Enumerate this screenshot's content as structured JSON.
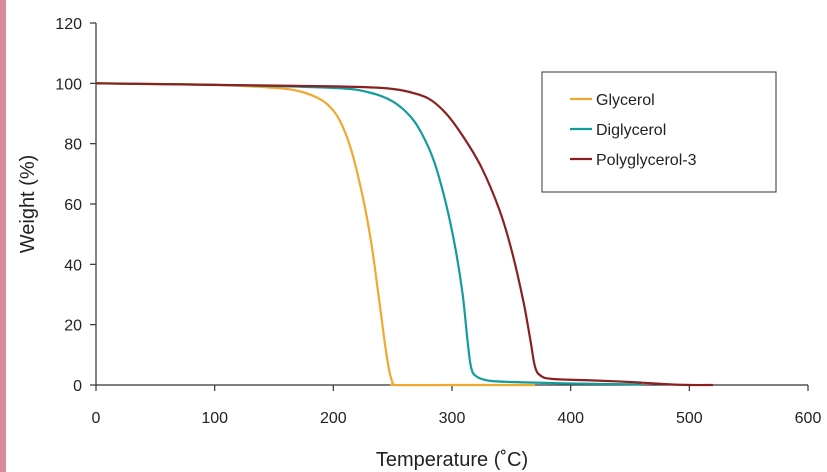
{
  "chart_data": {
    "type": "line",
    "title": "",
    "xlabel": "Temperature (˚C)",
    "ylabel": "Weight (%)",
    "xlim": [
      0,
      600
    ],
    "ylim": [
      0,
      120
    ],
    "x_ticks": [
      0,
      100,
      200,
      300,
      400,
      500,
      600
    ],
    "y_ticks": [
      0,
      20,
      40,
      60,
      80,
      100,
      120
    ],
    "grid": false,
    "legend_position": "top-right",
    "series": [
      {
        "name": "Glycerol",
        "color": "#f0a830",
        "points": [
          [
            0,
            100
          ],
          [
            50,
            99.8
          ],
          [
            100,
            99.5
          ],
          [
            150,
            98.5
          ],
          [
            170,
            97.5
          ],
          [
            185,
            95.5
          ],
          [
            195,
            93
          ],
          [
            205,
            88
          ],
          [
            215,
            78
          ],
          [
            225,
            62
          ],
          [
            232,
            47
          ],
          [
            238,
            30
          ],
          [
            243,
            15
          ],
          [
            247,
            5
          ],
          [
            250,
            0.8
          ],
          [
            253,
            0
          ],
          [
            300,
            0
          ],
          [
            370,
            0
          ]
        ]
      },
      {
        "name": "Diglycerol",
        "color": "#139c9c",
        "points": [
          [
            0,
            100
          ],
          [
            100,
            99.5
          ],
          [
            200,
            98.5
          ],
          [
            230,
            97
          ],
          [
            250,
            94
          ],
          [
            265,
            89
          ],
          [
            275,
            83
          ],
          [
            285,
            74
          ],
          [
            295,
            60
          ],
          [
            303,
            45
          ],
          [
            309,
            30
          ],
          [
            313,
            15
          ],
          [
            316,
            6
          ],
          [
            320,
            3
          ],
          [
            330,
            1.5
          ],
          [
            350,
            1
          ],
          [
            400,
            0.5
          ],
          [
            460,
            0.2
          ]
        ]
      },
      {
        "name": "Polyglycerol-3",
        "color": "#8b2020",
        "points": [
          [
            0,
            100
          ],
          [
            100,
            99.5
          ],
          [
            200,
            99
          ],
          [
            240,
            98.5
          ],
          [
            260,
            97.5
          ],
          [
            280,
            95
          ],
          [
            295,
            90
          ],
          [
            310,
            82
          ],
          [
            325,
            72
          ],
          [
            340,
            58
          ],
          [
            350,
            45
          ],
          [
            360,
            28
          ],
          [
            366,
            15
          ],
          [
            370,
            6
          ],
          [
            375,
            3
          ],
          [
            385,
            2
          ],
          [
            420,
            1.5
          ],
          [
            450,
            1
          ],
          [
            480,
            0.3
          ],
          [
            500,
            0
          ],
          [
            520,
            0
          ]
        ]
      }
    ]
  },
  "decor": {
    "left_strip_color": "#d98b97"
  }
}
